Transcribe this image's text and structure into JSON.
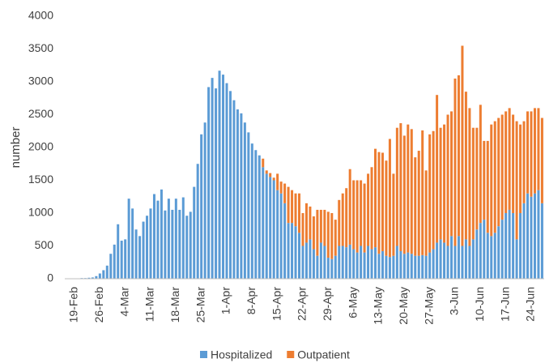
{
  "chart_data": {
    "type": "bar",
    "stacked": true,
    "ylabel": "number",
    "categories": [
      "19-Feb",
      null,
      null,
      null,
      null,
      null,
      null,
      "26-Feb",
      null,
      null,
      null,
      null,
      null,
      null,
      "4-Mar",
      null,
      null,
      null,
      null,
      null,
      null,
      "11-Mar",
      null,
      null,
      null,
      null,
      null,
      null,
      "18-Mar",
      null,
      null,
      null,
      null,
      null,
      null,
      "25-Mar",
      null,
      null,
      null,
      null,
      null,
      null,
      "1-Apr",
      null,
      null,
      null,
      null,
      null,
      null,
      "8-Apr",
      null,
      null,
      null,
      null,
      null,
      null,
      "15-Apr",
      null,
      null,
      null,
      null,
      null,
      null,
      "22-Apr",
      null,
      null,
      null,
      null,
      null,
      null,
      "29-Apr",
      null,
      null,
      null,
      null,
      null,
      null,
      "6-May",
      null,
      null,
      null,
      null,
      null,
      null,
      "13-May",
      null,
      null,
      null,
      null,
      null,
      null,
      "20-May",
      null,
      null,
      null,
      null,
      null,
      null,
      "27-May",
      null,
      null,
      null,
      null,
      null,
      null,
      "3-Jun",
      null,
      null,
      null,
      null,
      null,
      null,
      "10-Jun",
      null,
      null,
      null,
      null,
      null,
      null,
      "17-Jun",
      null,
      null,
      null,
      null,
      null,
      null,
      "24-Jun",
      null,
      null,
      null
    ],
    "series": [
      {
        "name": "Hospitalized",
        "color": "#5b9bd5",
        "values": [
          5,
          5,
          10,
          10,
          15,
          20,
          40,
          80,
          130,
          200,
          380,
          520,
          830,
          580,
          600,
          1220,
          1070,
          750,
          650,
          870,
          960,
          1070,
          1290,
          1190,
          1360,
          1040,
          1220,
          1050,
          1220,
          1050,
          1240,
          960,
          1020,
          1400,
          1750,
          2200,
          2380,
          2920,
          3060,
          2900,
          3170,
          3110,
          2980,
          2860,
          2720,
          2580,
          2520,
          2380,
          2230,
          2060,
          1960,
          1880,
          1700,
          1600,
          1550,
          1500,
          1350,
          1300,
          1150,
          850,
          850,
          800,
          700,
          500,
          550,
          600,
          450,
          350,
          550,
          500,
          320,
          300,
          350,
          500,
          500,
          480,
          520,
          450,
          400,
          500,
          400,
          500,
          450,
          480,
          380,
          420,
          350,
          330,
          350,
          500,
          420,
          380,
          400,
          380,
          350,
          350,
          360,
          350,
          400,
          450,
          550,
          600,
          550,
          500,
          650,
          500,
          650,
          500,
          600,
          500,
          600,
          750,
          850,
          900,
          700,
          650,
          700,
          800,
          900,
          1000,
          1050,
          1000,
          600,
          1000,
          1150,
          1300,
          1250,
          1300,
          1350,
          1150
        ]
      },
      {
        "name": "Outpatient",
        "color": "#ed7d31",
        "values": [
          0,
          0,
          0,
          0,
          0,
          0,
          0,
          0,
          0,
          0,
          0,
          0,
          0,
          0,
          0,
          0,
          0,
          0,
          0,
          0,
          0,
          0,
          0,
          0,
          0,
          0,
          0,
          0,
          0,
          0,
          0,
          0,
          0,
          0,
          0,
          0,
          0,
          0,
          0,
          0,
          0,
          0,
          0,
          0,
          0,
          0,
          0,
          0,
          0,
          0,
          0,
          0,
          130,
          50,
          60,
          40,
          250,
          180,
          300,
          550,
          500,
          500,
          600,
          500,
          600,
          500,
          500,
          700,
          500,
          550,
          700,
          700,
          550,
          700,
          800,
          900,
          1150,
          1050,
          1100,
          1000,
          1050,
          1100,
          1250,
          1500,
          1550,
          1500,
          1450,
          1800,
          1250,
          1800,
          1950,
          1800,
          1950,
          1900,
          1500,
          1600,
          1900,
          1300,
          1800,
          1800,
          2250,
          1700,
          1800,
          2000,
          1900,
          2550,
          2450,
          3050,
          2250,
          2100,
          1700,
          1550,
          1800,
          1200,
          1400,
          1700,
          1700,
          1650,
          1600,
          1550,
          1550,
          1500,
          1800,
          1350,
          1250,
          1250,
          1300,
          1300,
          1250,
          1300
        ]
      }
    ],
    "ylim": [
      0,
      4000
    ],
    "yticks": [
      0,
      500,
      1000,
      1500,
      2000,
      2500,
      3000,
      3500,
      4000
    ],
    "grid": false,
    "legend": "bottom"
  }
}
